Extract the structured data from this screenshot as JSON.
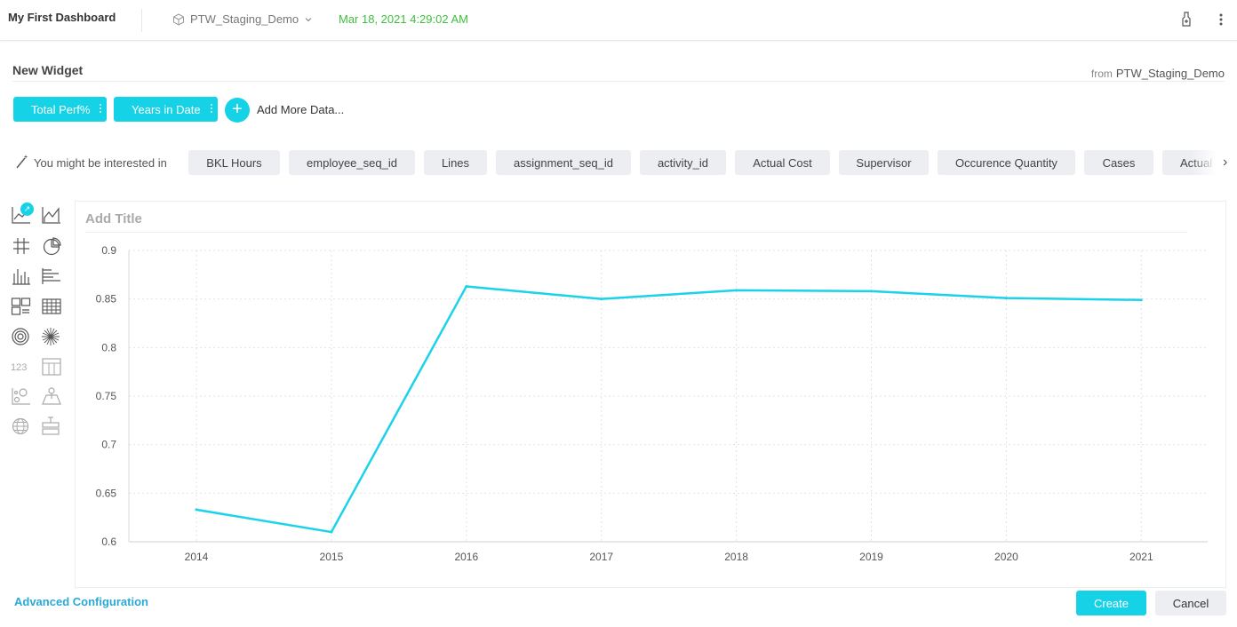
{
  "header": {
    "dashboard_title": "My First Dashboard",
    "datasource": "PTW_Staging_Demo",
    "timestamp": "Mar 18, 2021 4:29:02 AM",
    "icons": [
      "datasource-cube-icon",
      "chevron-down-icon",
      "clear-filters-icon",
      "more-vertical-icon"
    ]
  },
  "widget": {
    "title": "New Widget",
    "from_label": "from",
    "from_source": "PTW_Staging_Demo"
  },
  "data_pills": [
    {
      "label": "Total Perf%"
    },
    {
      "label": "Years in Date"
    }
  ],
  "add_more_label": "Add More Data...",
  "suggestions": {
    "label": "You might be interested in",
    "items": [
      "BKL Hours",
      "employee_seq_id",
      "Lines",
      "assignment_seq_id",
      "activity_id",
      "Actual Cost",
      "Supervisor",
      "Occurence Quantity",
      "Cases",
      "Actual"
    ]
  },
  "chart_types": {
    "selected_badge": "↗",
    "icons": [
      "line-chart-icon",
      "area-chart-icon",
      "pivot-grid-icon",
      "pie-chart-icon",
      "column-chart-icon",
      "bar-chart-icon",
      "indicator-icon",
      "table-icon",
      "polar-chart-icon",
      "sunburst-icon",
      "number-icon",
      "scatter-table-icon",
      "scatter-chart-icon",
      "map-area-icon",
      "globe-map-icon",
      "box-plot-icon"
    ]
  },
  "chart_title_placeholder": "Add Title",
  "chart_data": {
    "type": "line",
    "title": "",
    "xlabel": "",
    "ylabel": "",
    "categories": [
      "2014",
      "2015",
      "2016",
      "2017",
      "2018",
      "2019",
      "2020",
      "2021"
    ],
    "series": [
      {
        "values": [
          0.633,
          0.61,
          0.863,
          0.85,
          0.859,
          0.858,
          0.851,
          0.849
        ],
        "color": "#1ad3e8"
      }
    ],
    "ylim": [
      0.6,
      0.9
    ],
    "yticks": [
      "0.6",
      "0.65",
      "0.7",
      "0.75",
      "0.8",
      "0.85",
      "0.9"
    ],
    "grid": true,
    "legend": "none"
  },
  "footer": {
    "advanced_label": "Advanced Configuration",
    "create_label": "Create",
    "cancel_label": "Cancel"
  },
  "colors": {
    "accent": "#16d2e6",
    "timestamp": "#3dbf3d",
    "link": "#2aa9d6"
  }
}
